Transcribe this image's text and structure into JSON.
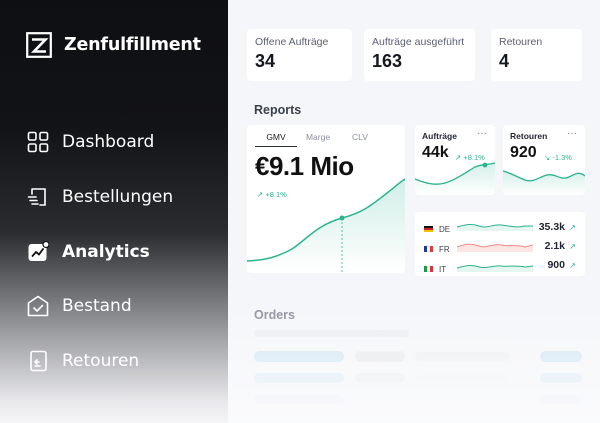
{
  "sidebar": {
    "brand": "Zenfulfillment",
    "items": [
      {
        "label": "Dashboard",
        "icon": "dashboard-grid-icon",
        "active": false
      },
      {
        "label": "Bestellungen",
        "icon": "receipt-icon",
        "active": false
      },
      {
        "label": "Analytics",
        "icon": "analytics-chart-icon",
        "active": true
      },
      {
        "label": "Bestand",
        "icon": "warehouse-icon",
        "active": false
      },
      {
        "label": "Retouren",
        "icon": "return-icon",
        "active": false
      }
    ]
  },
  "kpis": [
    {
      "label": "Offene Aufträge",
      "value": "34"
    },
    {
      "label": "Aufträge ausgeführt",
      "value": "163"
    },
    {
      "label": "Retouren",
      "value": "4"
    }
  ],
  "reports": {
    "title": "Reports",
    "main_card": {
      "tabs": [
        "GMV",
        "Marge",
        "CLV"
      ],
      "active_tab": "GMV",
      "value": "€9.1 Mio",
      "change": "↗ +8.1%"
    },
    "auftraege_card": {
      "title": "Aufträge",
      "menu": "···",
      "value": "44k",
      "change": "↗ +8.1%"
    },
    "retouren_card": {
      "title": "Retouren",
      "menu": "···",
      "value": "920",
      "change": "↘ -1.3%"
    },
    "countries": [
      {
        "code": "DE",
        "value": "35.3k",
        "arrow": "↗"
      },
      {
        "code": "FR",
        "value": "2.1k",
        "arrow": "↗"
      },
      {
        "code": "IT",
        "value": "900",
        "arrow": "↗"
      }
    ]
  },
  "orders": {
    "title": "Orders"
  },
  "colors": {
    "accent": "#2bb38f",
    "negative_series": "#f08b86"
  }
}
